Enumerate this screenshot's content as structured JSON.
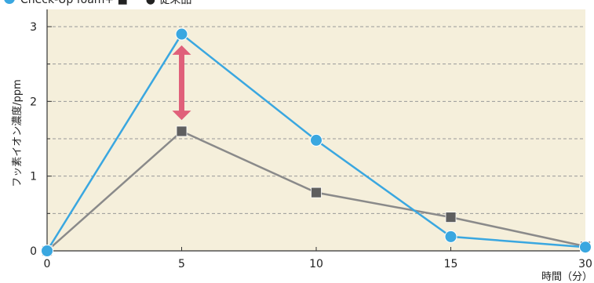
{
  "chart_data": {
    "type": "line",
    "legend_text": "Check-Up foam+ ■ ー ● 従来品",
    "xlabel": "時間（分）",
    "ylabel": "フッ素イオン濃度/ppm",
    "x_tick_labels": [
      "0",
      "5",
      "10",
      "15",
      "30"
    ],
    "y_tick_labels": [
      "0",
      "1",
      "2",
      "3"
    ],
    "ylim": [
      0,
      3
    ],
    "grid": true,
    "colors": {
      "series_blue": "#3aa7e0",
      "series_gray": "#8a8a8a",
      "marker_gray": "#5f5f5f",
      "plot_bg": "#f5efdb",
      "arrow": "#e0607a"
    },
    "series": [
      {
        "values": [
          0,
          2.9,
          1.48,
          0.19,
          0.05
        ]
      },
      {
        "values": [
          0,
          1.6,
          0.78,
          0.45,
          0.06
        ]
      }
    ],
    "annotation": {
      "type": "double-arrow",
      "x_index": 1,
      "from": 1.75,
      "to": 2.75
    }
  }
}
